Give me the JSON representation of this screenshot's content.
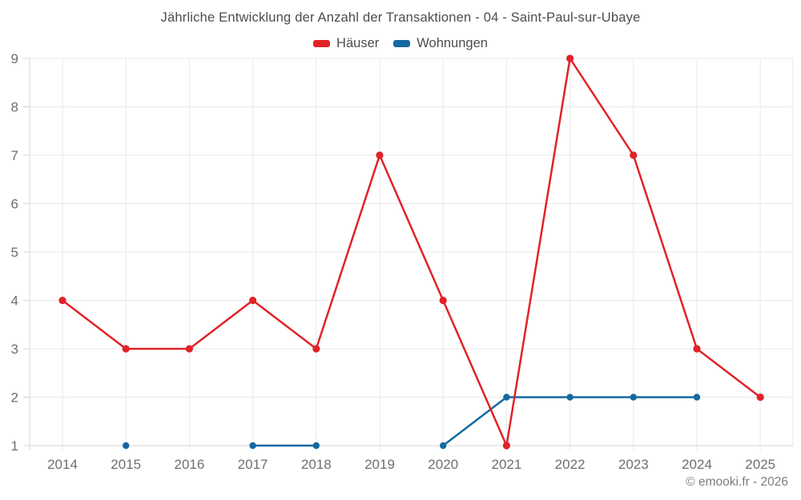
{
  "title": "Jährliche Entwicklung der Anzahl der Transaktionen - 04 - Saint-Paul-sur-Ubaye",
  "legend": {
    "items": [
      {
        "label": "Häuser",
        "color": "#e12228"
      },
      {
        "label": "Wohnungen",
        "color": "#1569a1"
      }
    ]
  },
  "footer": {
    "credit": "© emooki.fr - 2026"
  },
  "colors": {
    "background": "#ffffff",
    "grid": "#e9e9e9",
    "axis": "#d6d6d6",
    "tick_label": "#6e6e6e",
    "title_text": "#4c4c4c",
    "footer_text": "#7d7d7d",
    "series_hauser": "#e12228",
    "series_wohnungen": "#1569a1"
  },
  "chart_data": {
    "type": "line",
    "title": "Jährliche Entwicklung der Anzahl der Transaktionen - 04 - Saint-Paul-sur-Ubaye",
    "categories": [
      "2014",
      "2015",
      "2016",
      "2017",
      "2018",
      "2019",
      "2020",
      "2021",
      "2022",
      "2023",
      "2024",
      "2025"
    ],
    "series": [
      {
        "name": "Häuser",
        "color": "#e12228",
        "values": [
          4,
          3,
          3,
          4,
          3,
          7,
          4,
          1,
          9,
          7,
          3,
          2
        ]
      },
      {
        "name": "Wohnungen",
        "color": "#1569a1",
        "values": [
          null,
          1,
          null,
          1,
          1,
          null,
          1,
          2,
          2,
          2,
          2,
          null
        ]
      }
    ],
    "xlabel": "",
    "ylabel": "",
    "ylim": [
      1,
      9
    ],
    "yticks": [
      1,
      2,
      3,
      4,
      5,
      6,
      7,
      8,
      9
    ],
    "grid": true,
    "markers": true,
    "legend_position": "top"
  }
}
